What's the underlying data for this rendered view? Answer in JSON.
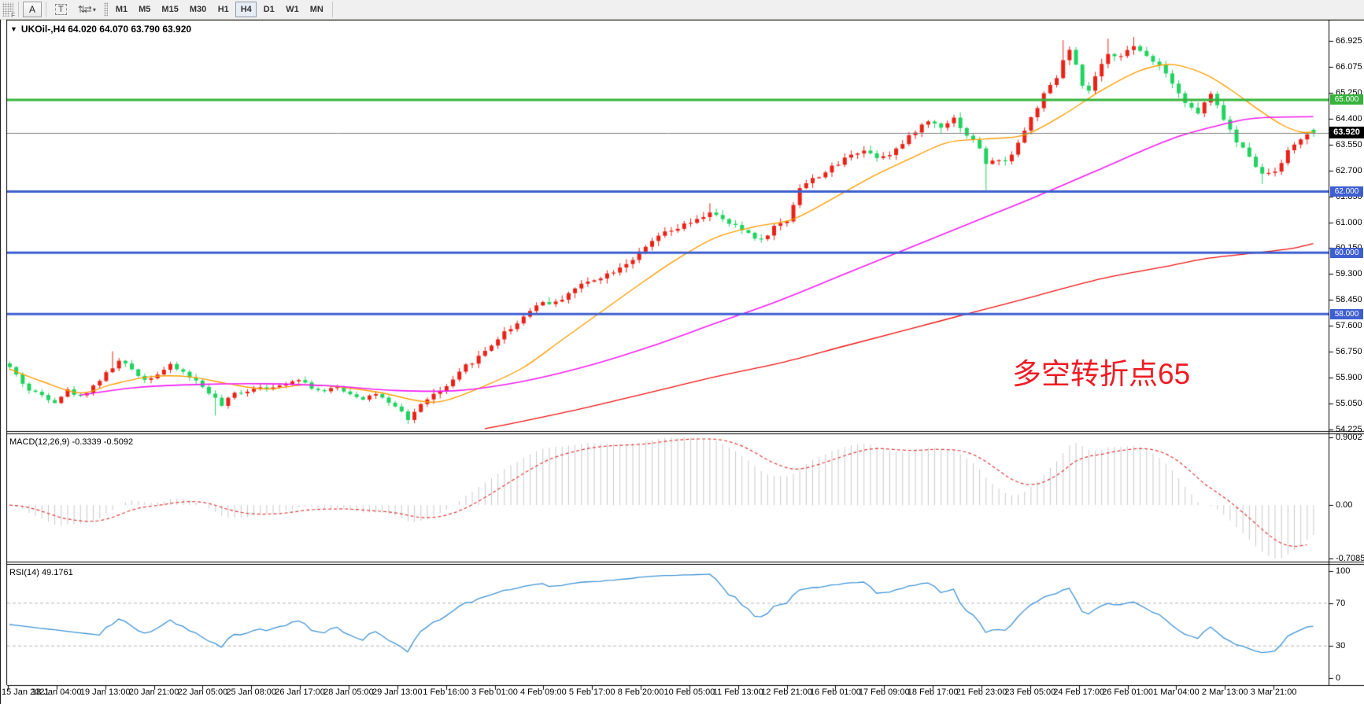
{
  "toolbar": {
    "grip_label": "F",
    "annotate_button": "A",
    "text_button": "T",
    "cursor_icon": "arrows",
    "caret": "▾",
    "timeframes": [
      "M1",
      "M5",
      "M15",
      "M30",
      "H1",
      "H4",
      "D1",
      "W1",
      "MN"
    ],
    "active_timeframe": "H4"
  },
  "chart": {
    "title": "UKOil-,H4  64.020 64.070 63.790 63.920",
    "selector_icon": "▼",
    "symbol": "UKOil-",
    "period": "H4",
    "open": "64.020",
    "high": "64.070",
    "low": "63.790",
    "close": "63.920"
  },
  "annotation": {
    "text": "多空转折点65",
    "color": "#ee1c25"
  },
  "price_axis": {
    "ticks": [
      "66.925",
      "66.075",
      "65.250",
      "64.400",
      "63.550",
      "62.700",
      "61.850",
      "61.000",
      "60.150",
      "59.300",
      "58.450",
      "57.600",
      "56.750",
      "55.900",
      "55.050",
      "54.225"
    ],
    "line_labels": [
      {
        "text": "65.000",
        "value": 65.0,
        "color": "#36b33b"
      },
      {
        "text": "62.000",
        "value": 62.0,
        "color": "#3e5fd0"
      },
      {
        "text": "60.000",
        "value": 60.0,
        "color": "#3e5fd0"
      },
      {
        "text": "58.000",
        "value": 58.0,
        "color": "#3e5fd0"
      }
    ],
    "current": {
      "text": "63.920",
      "value": 63.92,
      "bg": "#000000"
    }
  },
  "time_axis": {
    "labels": [
      "15 Jan 2021",
      "18 Jan 04:00",
      "19 Jan 13:00",
      "20 Jan 21:00",
      "22 Jan 05:00",
      "25 Jan 08:00",
      "26 Jan 17:00",
      "28 Jan 05:00",
      "29 Jan 13:00",
      "1 Feb 16:00",
      "3 Feb 01:00",
      "4 Feb 09:00",
      "5 Feb 17:00",
      "8 Feb 20:00",
      "10 Feb 05:00",
      "11 Feb 13:00",
      "12 Feb 21:00",
      "16 Feb 01:00",
      "17 Feb 09:00",
      "18 Feb 17:00",
      "21 Feb 23:00",
      "23 Feb 05:00",
      "24 Feb 17:00",
      "26 Feb 01:00",
      "1 Mar 04:00",
      "2 Mar 13:00",
      "3 Mar 21:00"
    ]
  },
  "indicators": {
    "macd": {
      "label": "MACD(12,26,9) -0.3339 -0.5092",
      "ticks": [
        "0.9002",
        "0.00",
        "-0.7085"
      ],
      "main": -0.3339,
      "signal": -0.5092,
      "hist_color": "#c9c9c9",
      "signal_color": "#e23b3b"
    },
    "rsi": {
      "label": "RSI(14) 49.1761",
      "ticks": [
        "100",
        "70",
        "30",
        "0"
      ],
      "value": 49.1761,
      "line_color": "#3f93d6",
      "level_high": 70,
      "level_low": 30
    }
  },
  "chart_data": {
    "type": "candlestick",
    "symbol": "UKOil-",
    "timeframe": "H4",
    "bars": 204,
    "seed": 42,
    "up_color": "#ea2217",
    "down_color": "#1fd35f",
    "price_ticks_top": 66.925,
    "price_tick_step": 0.846667,
    "close_keyframes": [
      [
        0,
        56.25
      ],
      [
        1,
        56.0
      ],
      [
        3,
        55.5
      ],
      [
        5,
        55.35
      ],
      [
        7,
        55.15
      ],
      [
        9,
        55.5
      ],
      [
        11,
        55.3
      ],
      [
        13,
        55.65
      ],
      [
        15,
        56.05
      ],
      [
        17,
        56.45
      ],
      [
        19,
        56.2
      ],
      [
        21,
        55.85
      ],
      [
        23,
        56.05
      ],
      [
        25,
        56.3
      ],
      [
        27,
        56.1
      ],
      [
        29,
        55.8
      ],
      [
        31,
        55.45
      ],
      [
        33,
        55.0
      ],
      [
        35,
        55.4
      ],
      [
        37,
        55.5
      ],
      [
        39,
        55.65
      ],
      [
        41,
        55.55
      ],
      [
        43,
        55.75
      ],
      [
        45,
        55.9
      ],
      [
        47,
        55.6
      ],
      [
        49,
        55.45
      ],
      [
        51,
        55.6
      ],
      [
        53,
        55.4
      ],
      [
        55,
        55.25
      ],
      [
        57,
        55.4
      ],
      [
        59,
        55.05
      ],
      [
        61,
        54.8
      ],
      [
        62,
        54.55
      ],
      [
        63,
        54.8
      ],
      [
        65,
        55.25
      ],
      [
        67,
        55.45
      ],
      [
        69,
        55.8
      ],
      [
        71,
        56.3
      ],
      [
        73,
        56.6
      ],
      [
        75,
        57.0
      ],
      [
        77,
        57.4
      ],
      [
        79,
        57.7
      ],
      [
        81,
        58.15
      ],
      [
        83,
        58.4
      ],
      [
        85,
        58.35
      ],
      [
        87,
        58.7
      ],
      [
        89,
        58.95
      ],
      [
        91,
        59.15
      ],
      [
        93,
        59.3
      ],
      [
        95,
        59.55
      ],
      [
        97,
        59.8
      ],
      [
        99,
        60.15
      ],
      [
        101,
        60.55
      ],
      [
        103,
        60.7
      ],
      [
        105,
        60.9
      ],
      [
        107,
        61.05
      ],
      [
        109,
        61.35
      ],
      [
        111,
        61.05
      ],
      [
        113,
        60.85
      ],
      [
        115,
        60.65
      ],
      [
        117,
        60.4
      ],
      [
        119,
        60.85
      ],
      [
        121,
        61.05
      ],
      [
        123,
        62.15
      ],
      [
        125,
        62.4
      ],
      [
        127,
        62.65
      ],
      [
        129,
        62.9
      ],
      [
        131,
        63.25
      ],
      [
        133,
        63.35
      ],
      [
        135,
        63.15
      ],
      [
        137,
        63.25
      ],
      [
        139,
        63.55
      ],
      [
        141,
        64.0
      ],
      [
        143,
        64.3
      ],
      [
        145,
        64.15
      ],
      [
        147,
        64.4
      ],
      [
        149,
        63.85
      ],
      [
        151,
        63.45
      ],
      [
        152,
        62.85
      ],
      [
        153,
        63.05
      ],
      [
        155,
        62.95
      ],
      [
        157,
        63.6
      ],
      [
        159,
        64.4
      ],
      [
        161,
        65.15
      ],
      [
        163,
        65.7
      ],
      [
        164,
        66.3
      ],
      [
        165,
        66.6
      ],
      [
        166,
        66.1
      ],
      [
        167,
        65.4
      ],
      [
        168,
        65.3
      ],
      [
        169,
        65.75
      ],
      [
        171,
        66.45
      ],
      [
        173,
        66.5
      ],
      [
        175,
        66.7
      ],
      [
        177,
        66.45
      ],
      [
        179,
        66.15
      ],
      [
        181,
        65.6
      ],
      [
        183,
        64.9
      ],
      [
        185,
        64.55
      ],
      [
        186,
        64.9
      ],
      [
        187,
        65.15
      ],
      [
        189,
        64.4
      ],
      [
        191,
        63.6
      ],
      [
        193,
        63.2
      ],
      [
        195,
        62.55
      ],
      [
        197,
        62.7
      ],
      [
        199,
        63.3
      ],
      [
        201,
        63.75
      ],
      [
        203,
        63.92
      ]
    ],
    "wick_spikes": [
      {
        "i": 16,
        "h": 56.78
      },
      {
        "i": 32,
        "l": 54.68
      },
      {
        "i": 62,
        "l": 54.4
      },
      {
        "i": 109,
        "h": 61.62
      },
      {
        "i": 152,
        "l": 62.05
      },
      {
        "i": 164,
        "h": 66.95
      },
      {
        "i": 171,
        "h": 67.0
      },
      {
        "i": 175,
        "h": 67.05
      },
      {
        "i": 195,
        "l": 62.25
      }
    ],
    "last_bar": {
      "o": 64.02,
      "h": 64.07,
      "l": 63.79,
      "c": 63.92
    },
    "moving_averages": [
      {
        "name": "fast-ma",
        "color": "#ff9c00",
        "width": 1.4,
        "keyframes": [
          [
            0,
            56.2
          ],
          [
            5,
            55.8
          ],
          [
            11,
            55.42
          ],
          [
            16,
            55.7
          ],
          [
            22,
            55.95
          ],
          [
            28,
            55.95
          ],
          [
            34,
            55.72
          ],
          [
            40,
            55.55
          ],
          [
            46,
            55.68
          ],
          [
            52,
            55.6
          ],
          [
            58,
            55.42
          ],
          [
            64,
            55.15
          ],
          [
            68,
            55.18
          ],
          [
            74,
            55.65
          ],
          [
            80,
            56.25
          ],
          [
            86,
            57.15
          ],
          [
            92,
            58.05
          ],
          [
            98,
            58.95
          ],
          [
            104,
            59.8
          ],
          [
            110,
            60.5
          ],
          [
            116,
            60.85
          ],
          [
            122,
            61.1
          ],
          [
            128,
            61.75
          ],
          [
            134,
            62.45
          ],
          [
            140,
            63.05
          ],
          [
            146,
            63.6
          ],
          [
            152,
            63.72
          ],
          [
            158,
            63.85
          ],
          [
            164,
            64.5
          ],
          [
            170,
            65.3
          ],
          [
            176,
            65.95
          ],
          [
            181,
            66.15
          ],
          [
            186,
            65.85
          ],
          [
            190,
            65.35
          ],
          [
            194,
            64.75
          ],
          [
            198,
            64.2
          ],
          [
            201,
            63.95
          ],
          [
            203,
            63.95
          ]
        ]
      },
      {
        "name": "mid-ma",
        "color": "#f31df3",
        "width": 1.6,
        "keyframes": [
          [
            11,
            55.35
          ],
          [
            20,
            55.6
          ],
          [
            30,
            55.7
          ],
          [
            40,
            55.72
          ],
          [
            50,
            55.65
          ],
          [
            60,
            55.5
          ],
          [
            70,
            55.5
          ],
          [
            80,
            55.8
          ],
          [
            90,
            56.3
          ],
          [
            100,
            56.95
          ],
          [
            110,
            57.7
          ],
          [
            120,
            58.45
          ],
          [
            130,
            59.3
          ],
          [
            140,
            60.15
          ],
          [
            150,
            61.0
          ],
          [
            160,
            61.85
          ],
          [
            170,
            62.75
          ],
          [
            176,
            63.3
          ],
          [
            182,
            63.8
          ],
          [
            188,
            64.15
          ],
          [
            194,
            64.4
          ],
          [
            203,
            64.45
          ]
        ]
      },
      {
        "name": "slow-ma",
        "color": "#ee1111",
        "width": 1.3,
        "keyframes": [
          [
            74,
            54.25
          ],
          [
            80,
            54.5
          ],
          [
            90,
            54.95
          ],
          [
            100,
            55.45
          ],
          [
            110,
            55.95
          ],
          [
            120,
            56.4
          ],
          [
            130,
            56.95
          ],
          [
            140,
            57.5
          ],
          [
            150,
            58.05
          ],
          [
            160,
            58.6
          ],
          [
            170,
            59.15
          ],
          [
            180,
            59.55
          ],
          [
            186,
            59.8
          ],
          [
            192,
            59.95
          ],
          [
            199,
            60.12
          ],
          [
            203,
            60.3
          ]
        ]
      }
    ],
    "horizontal_lines": [
      {
        "value": 65.0,
        "color": "#36b33b",
        "width": 3
      },
      {
        "value": 62.0,
        "color": "#3e5fd0",
        "width": 3
      },
      {
        "value": 60.0,
        "color": "#3e5fd0",
        "width": 3
      },
      {
        "value": 58.0,
        "color": "#3e5fd0",
        "width": 3
      }
    ],
    "current_price_line": {
      "value": 63.92,
      "color": "#808080"
    },
    "macd_axis": {
      "max": 0.9002,
      "min": -0.7085
    },
    "rsi_axis": {
      "max": 100,
      "min": 0,
      "levels": [
        70,
        30
      ]
    }
  }
}
